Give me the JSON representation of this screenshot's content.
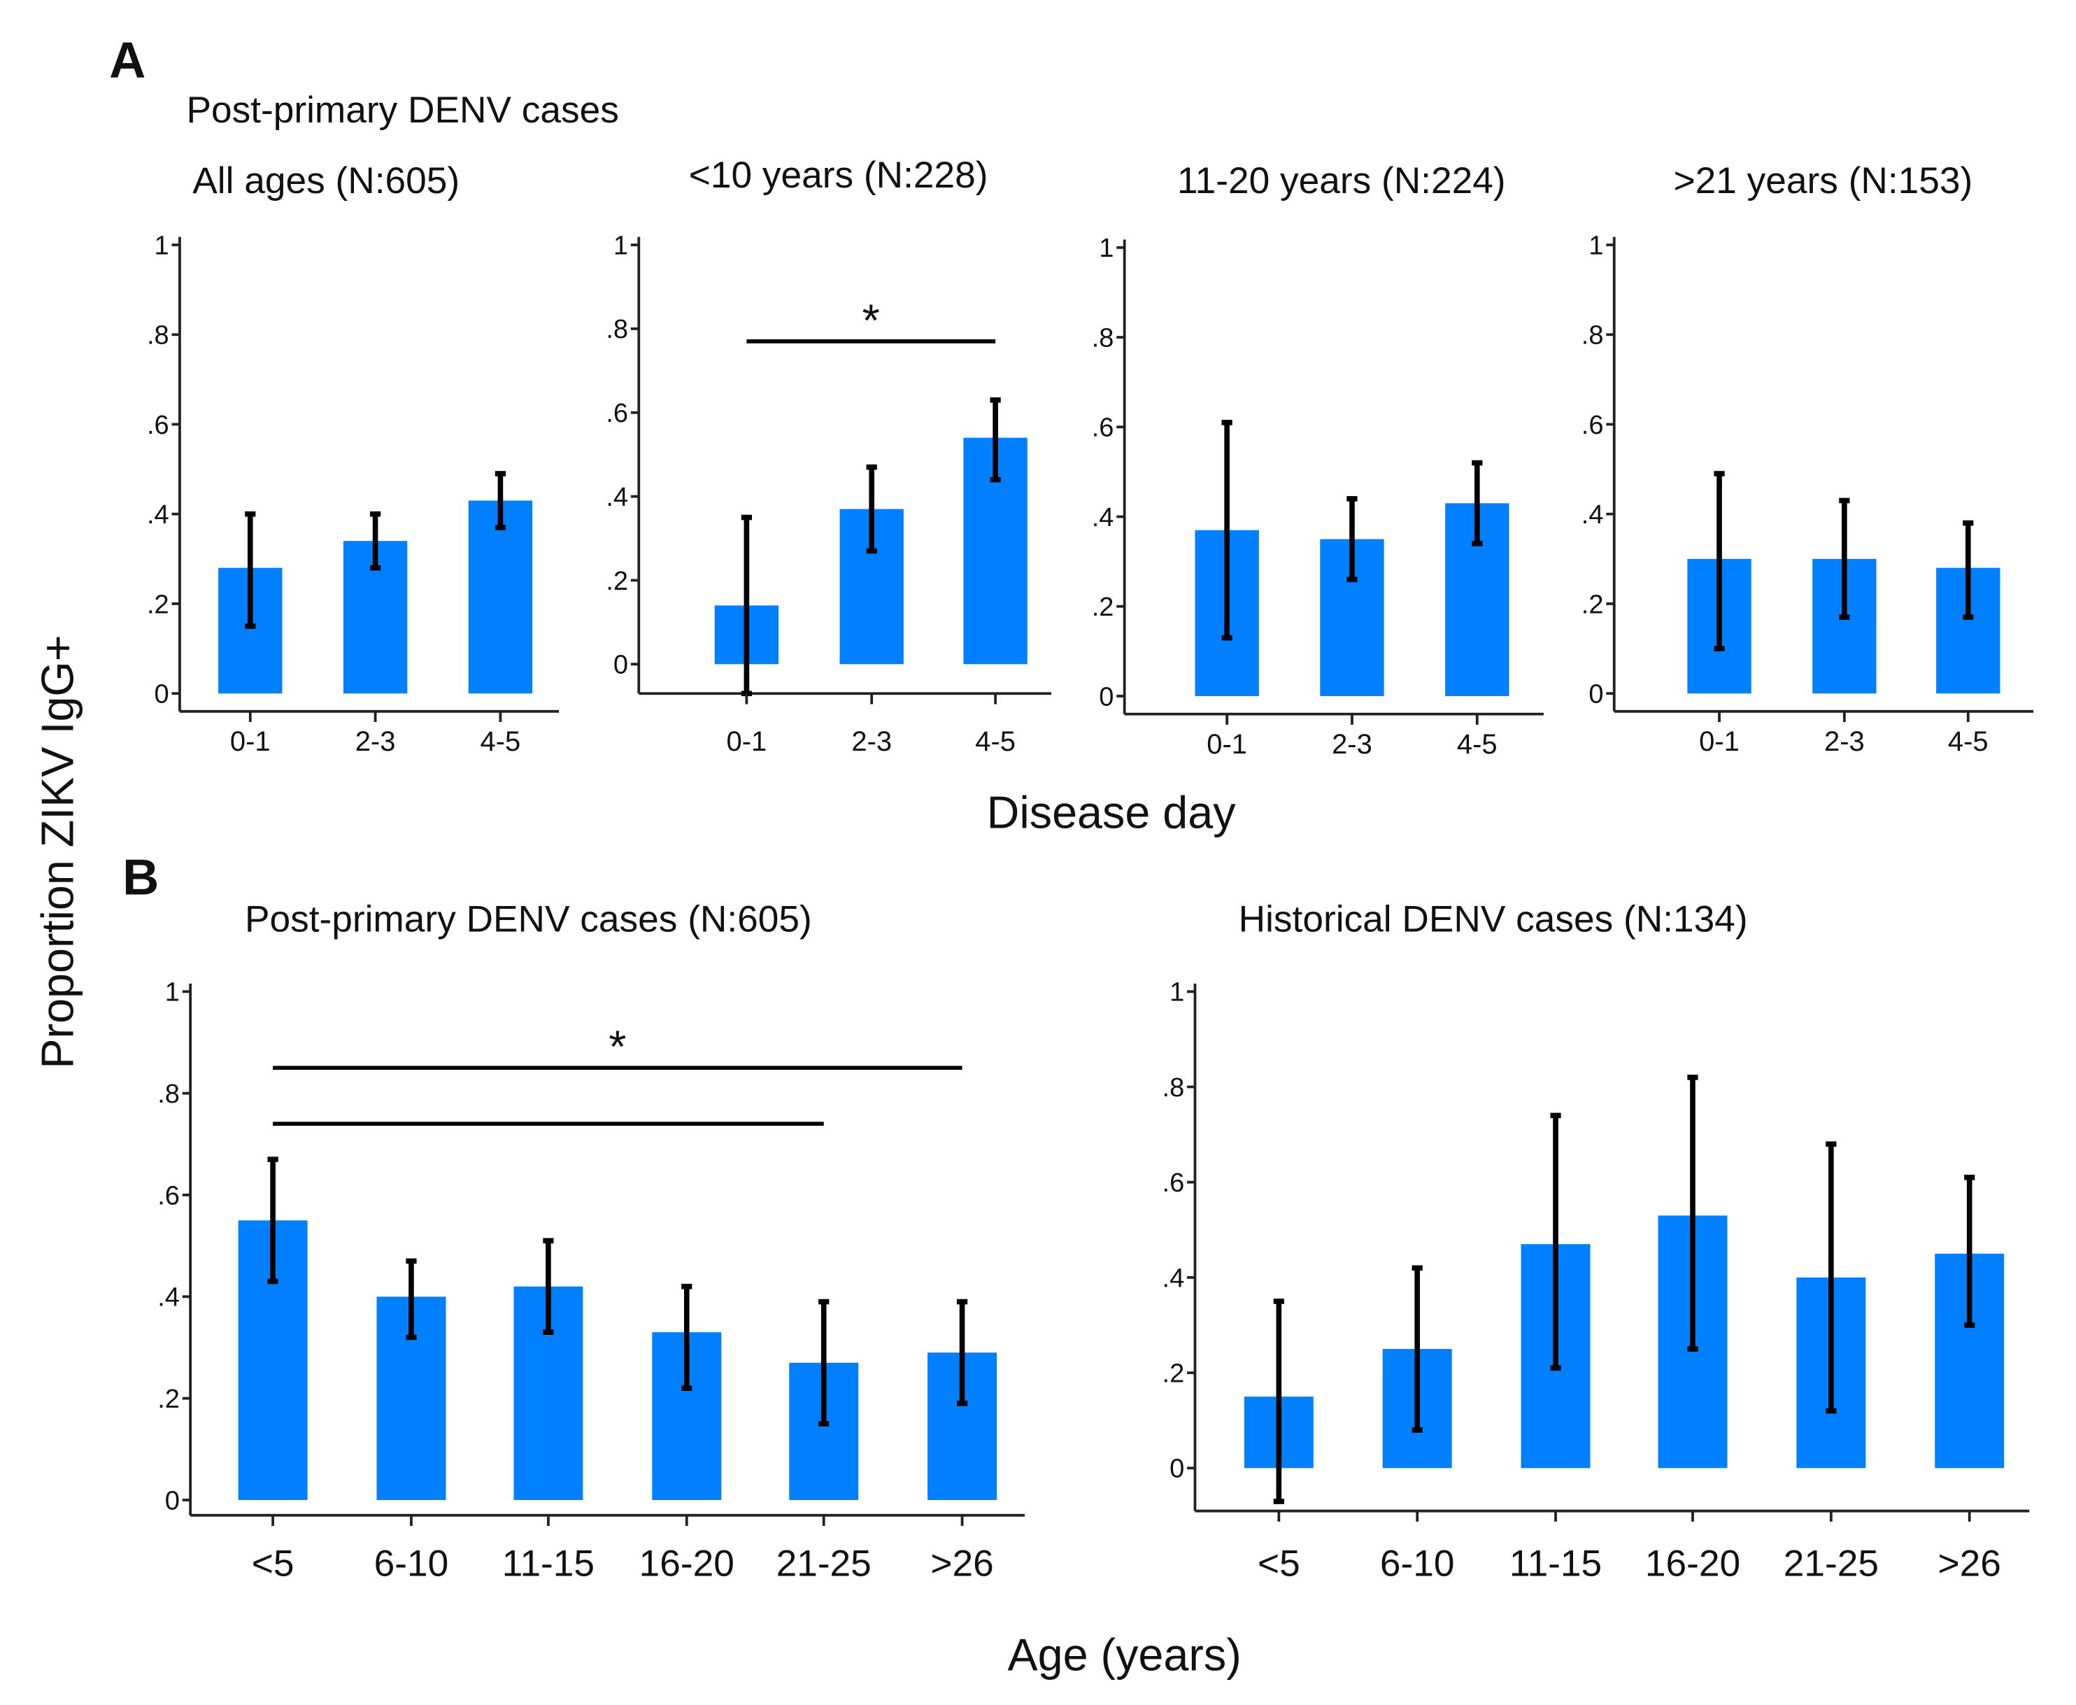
{
  "figure": {
    "panel_a_letter": "A",
    "panel_b_letter": "B",
    "panel_a_heading": "Post-primary DENV cases",
    "y_label": "Proportion ZIKV IgG+",
    "panel_a_xlabel": "Disease day",
    "panel_b_xlabel": "Age (years)",
    "bar_color": "#0080FF"
  },
  "chart_data": [
    {
      "type": "bar",
      "title": "All ages (N:605)",
      "categories": [
        "0-1",
        "2-3",
        "4-5"
      ],
      "values": [
        0.28,
        0.34,
        0.43
      ],
      "ci_low": [
        0.15,
        0.28,
        0.37
      ],
      "ci_high": [
        0.4,
        0.4,
        0.49
      ],
      "ylim": [
        -0.04,
        1
      ],
      "yticks": [
        "0",
        ".2",
        ".4",
        ".6",
        ".8",
        "1"
      ],
      "significance": []
    },
    {
      "type": "bar",
      "title": "<10 years (N:228)",
      "categories": [
        "0-1",
        "2-3",
        "4-5"
      ],
      "values": [
        0.14,
        0.37,
        0.54
      ],
      "ci_low": [
        -0.07,
        0.27,
        0.44
      ],
      "ci_high": [
        0.35,
        0.47,
        0.63
      ],
      "ylim": [
        -0.07,
        1
      ],
      "yticks": [
        "0",
        ".2",
        ".4",
        ".6",
        ".8",
        "1"
      ],
      "significance": [
        {
          "from": 0,
          "to": 2,
          "y": 0.77,
          "label": "*"
        }
      ]
    },
    {
      "type": "bar",
      "title": "11-20 years (N:224)",
      "categories": [
        "0-1",
        "2-3",
        "4-5"
      ],
      "values": [
        0.37,
        0.35,
        0.43
      ],
      "ci_low": [
        0.13,
        0.26,
        0.34
      ],
      "ci_high": [
        0.61,
        0.44,
        0.52
      ],
      "ylim": [
        -0.04,
        1
      ],
      "yticks": [
        "0",
        ".2",
        ".4",
        ".6",
        ".8",
        "1"
      ],
      "significance": []
    },
    {
      "type": "bar",
      "title": ">21 years (N:153)",
      "categories": [
        "0-1",
        "2-3",
        "4-5"
      ],
      "values": [
        0.3,
        0.3,
        0.28
      ],
      "ci_low": [
        0.1,
        0.17,
        0.17
      ],
      "ci_high": [
        0.49,
        0.43,
        0.38
      ],
      "ylim": [
        -0.04,
        1
      ],
      "yticks": [
        "0",
        ".2",
        ".4",
        ".6",
        ".8",
        "1"
      ],
      "significance": []
    },
    {
      "type": "bar",
      "title": "Post-primary DENV cases (N:605)",
      "categories": [
        "<5",
        "6-10",
        "11-15",
        "16-20",
        "21-25",
        ">26"
      ],
      "values": [
        0.55,
        0.4,
        0.42,
        0.33,
        0.27,
        0.29
      ],
      "ci_low": [
        0.43,
        0.32,
        0.33,
        0.22,
        0.15,
        0.19
      ],
      "ci_high": [
        0.67,
        0.47,
        0.51,
        0.42,
        0.39,
        0.39
      ],
      "ylim": [
        -0.03,
        1
      ],
      "yticks": [
        "0",
        ".2",
        ".4",
        ".6",
        ".8",
        "1"
      ],
      "significance": [
        {
          "from": 0,
          "to": 5,
          "y": 0.85,
          "label": "*"
        },
        {
          "from": 0,
          "to": 4,
          "y": 0.74,
          "label": ""
        }
      ]
    },
    {
      "type": "bar",
      "title": "Historical DENV cases (N:134)",
      "categories": [
        "<5",
        "6-10",
        "11-15",
        "16-20",
        "21-25",
        ">26"
      ],
      "values": [
        0.15,
        0.25,
        0.47,
        0.53,
        0.4,
        0.45
      ],
      "ci_low": [
        -0.07,
        0.08,
        0.21,
        0.25,
        0.12,
        0.3
      ],
      "ci_high": [
        0.35,
        0.42,
        0.74,
        0.82,
        0.68,
        0.61
      ],
      "ylim": [
        -0.09,
        1
      ],
      "yticks": [
        "0",
        ".2",
        ".4",
        ".6",
        ".8",
        "1"
      ],
      "significance": []
    }
  ]
}
